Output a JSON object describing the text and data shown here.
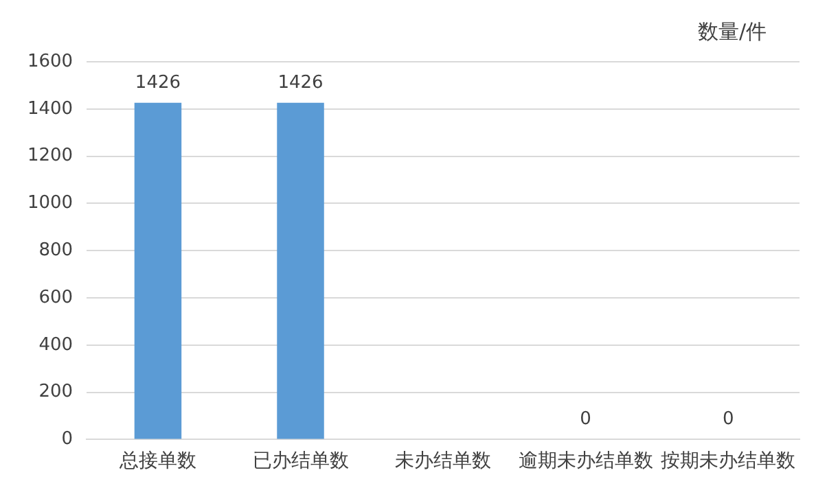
{
  "chart_data": {
    "type": "bar",
    "annotations": [
      "数量/件"
    ],
    "categories": [
      "总接单数",
      "已办结单数",
      "未办结单数",
      "逾期未办结单数",
      "按期未办结单数"
    ],
    "values": [
      1426,
      1426,
      0,
      0,
      0
    ],
    "value_labels": [
      "1426",
      "1426",
      null,
      "0",
      "0"
    ],
    "color": "#5b9bd5",
    "ylim": [
      0,
      1600
    ],
    "yticks": [
      0,
      200,
      400,
      600,
      800,
      1000,
      1200,
      1400,
      1600
    ],
    "grid": "y",
    "legend": false
  }
}
